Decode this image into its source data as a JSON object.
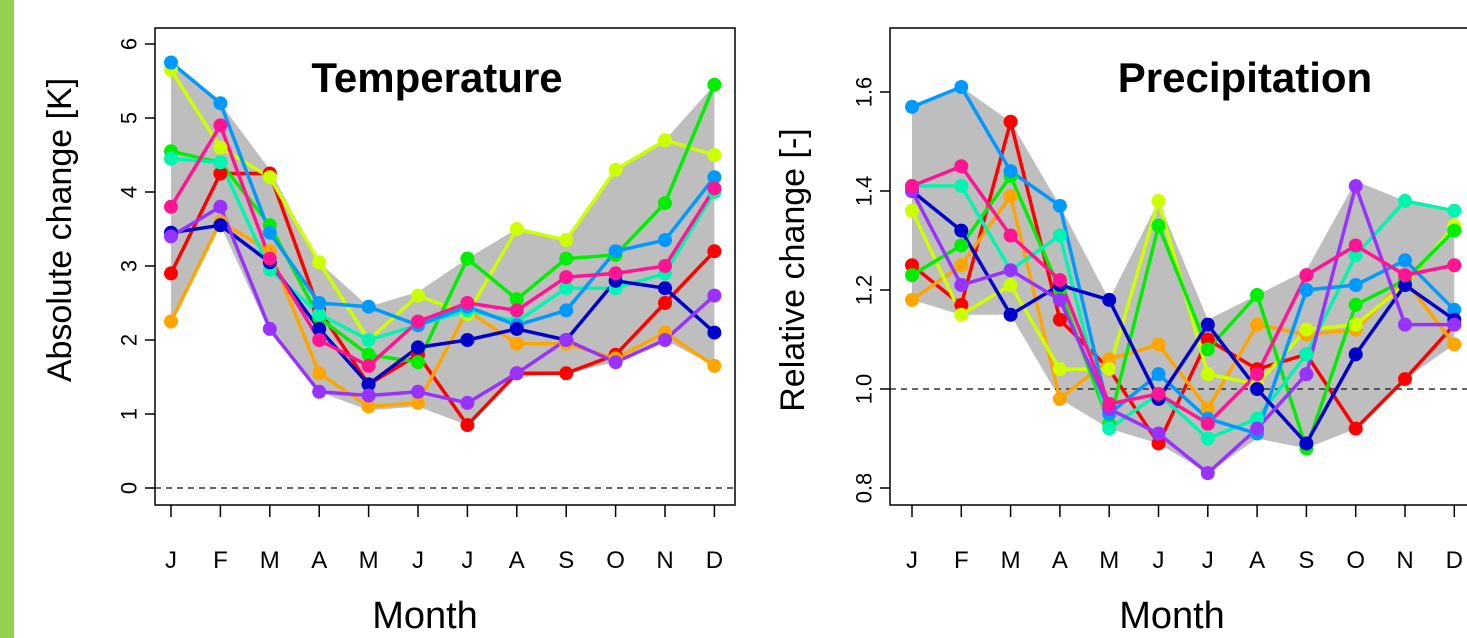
{
  "chart_data": [
    {
      "type": "line",
      "title": "Temperature",
      "xlabel": "Month",
      "ylabel": "Absolute change [K]",
      "categories": [
        "J",
        "F",
        "M",
        "A",
        "M",
        "J",
        "J",
        "A",
        "S",
        "O",
        "N",
        "D"
      ],
      "ylim": [
        -0.4,
        6.3
      ],
      "yticks": [
        "0",
        "1",
        "2",
        "3",
        "4",
        "5",
        "6"
      ],
      "reference_line": 0,
      "band": {
        "upper": [
          5.75,
          5.2,
          4.3,
          3.05,
          2.45,
          2.65,
          3.1,
          3.5,
          3.35,
          4.3,
          4.7,
          5.45
        ],
        "lower": [
          2.25,
          3.55,
          2.1,
          1.3,
          1.05,
          1.1,
          0.85,
          1.5,
          1.55,
          1.7,
          2.0,
          1.65
        ]
      },
      "series": [
        {
          "color": "#ff0000",
          "values": [
            2.9,
            4.25,
            4.25,
            2.4,
            1.4,
            1.8,
            0.85,
            1.55,
            1.55,
            1.8,
            2.5,
            3.2
          ]
        },
        {
          "color": "#ffa500",
          "values": [
            2.25,
            3.6,
            3.2,
            1.55,
            1.1,
            1.15,
            2.4,
            1.95,
            1.95,
            1.75,
            2.1,
            1.65
          ]
        },
        {
          "color": "#ccff00",
          "values": [
            5.65,
            4.6,
            4.2,
            3.05,
            2.0,
            2.6,
            2.35,
            3.5,
            3.35,
            4.3,
            4.7,
            4.5
          ]
        },
        {
          "color": "#00ee00",
          "values": [
            4.55,
            4.4,
            3.55,
            2.3,
            1.8,
            1.7,
            3.1,
            2.55,
            3.1,
            3.15,
            3.85,
            5.45
          ]
        },
        {
          "color": "#00f5b0",
          "values": [
            4.45,
            4.4,
            2.95,
            2.35,
            2.0,
            2.2,
            2.4,
            2.25,
            2.7,
            2.7,
            2.9,
            4.0
          ]
        },
        {
          "color": "#0099ff",
          "values": [
            5.75,
            5.2,
            3.45,
            2.5,
            2.45,
            2.2,
            2.45,
            2.2,
            2.4,
            3.2,
            3.35,
            4.2
          ]
        },
        {
          "color": "#0000cd",
          "values": [
            3.45,
            3.55,
            3.05,
            2.15,
            1.4,
            1.9,
            2.0,
            2.15,
            2.0,
            2.8,
            2.7,
            2.1
          ]
        },
        {
          "color": "#9932ff",
          "values": [
            3.4,
            3.8,
            2.15,
            1.3,
            1.25,
            1.3,
            1.15,
            1.55,
            2.0,
            1.7,
            2.0,
            2.6
          ]
        },
        {
          "color": "#ff1493",
          "values": [
            3.8,
            4.9,
            3.1,
            2.0,
            1.65,
            2.25,
            2.5,
            2.4,
            2.85,
            2.9,
            3.0,
            4.05
          ]
        }
      ]
    },
    {
      "type": "line",
      "title": "Precipitation",
      "xlabel": "Month",
      "ylabel": "Relative change [-]",
      "categories": [
        "J",
        "F",
        "M",
        "A",
        "M",
        "J",
        "J",
        "A",
        "S",
        "O",
        "N",
        "D"
      ],
      "ylim": [
        0.76,
        1.73
      ],
      "yticks": [
        "0.8",
        "1.0",
        "1.2",
        "1.4",
        "1.6"
      ],
      "reference_line": 1.0,
      "band": {
        "upper": [
          1.57,
          1.61,
          1.54,
          1.37,
          1.18,
          1.38,
          1.14,
          1.19,
          1.24,
          1.42,
          1.38,
          1.36
        ],
        "lower": [
          1.18,
          1.15,
          1.15,
          0.98,
          0.92,
          0.89,
          0.83,
          0.9,
          0.88,
          0.92,
          1.02,
          1.09
        ]
      },
      "series": [
        {
          "color": "#ff0000",
          "values": [
            1.25,
            1.17,
            1.54,
            1.14,
            1.04,
            0.89,
            1.1,
            1.04,
            1.07,
            0.92,
            1.02,
            1.13
          ]
        },
        {
          "color": "#ffa500",
          "values": [
            1.18,
            1.25,
            1.39,
            0.98,
            1.06,
            1.09,
            0.96,
            1.13,
            1.11,
            1.12,
            1.22,
            1.09
          ]
        },
        {
          "color": "#ccff00",
          "values": [
            1.36,
            1.15,
            1.21,
            1.04,
            1.04,
            1.38,
            1.03,
            1.01,
            1.12,
            1.13,
            1.21,
            1.33
          ]
        },
        {
          "color": "#00ee00",
          "values": [
            1.23,
            1.29,
            1.43,
            1.2,
            0.93,
            1.33,
            1.08,
            1.19,
            0.88,
            1.17,
            1.22,
            1.32
          ]
        },
        {
          "color": "#00f5b0",
          "values": [
            1.41,
            1.41,
            1.24,
            1.31,
            0.92,
            0.99,
            0.9,
            0.94,
            1.07,
            1.27,
            1.38,
            1.36
          ]
        },
        {
          "color": "#0099ff",
          "values": [
            1.57,
            1.61,
            1.44,
            1.37,
            0.95,
            1.03,
            0.94,
            0.91,
            1.2,
            1.21,
            1.26,
            1.16
          ]
        },
        {
          "color": "#0000cd",
          "values": [
            1.4,
            1.32,
            1.15,
            1.21,
            1.18,
            0.98,
            1.13,
            1.0,
            0.89,
            1.07,
            1.21,
            1.14
          ]
        },
        {
          "color": "#9932ff",
          "values": [
            1.4,
            1.21,
            1.24,
            1.18,
            0.96,
            0.91,
            0.83,
            0.92,
            1.03,
            1.41,
            1.13,
            1.13
          ]
        },
        {
          "color": "#ff1493",
          "values": [
            1.41,
            1.45,
            1.31,
            1.22,
            0.97,
            0.99,
            0.93,
            1.03,
            1.23,
            1.29,
            1.23,
            1.25
          ]
        }
      ]
    }
  ]
}
